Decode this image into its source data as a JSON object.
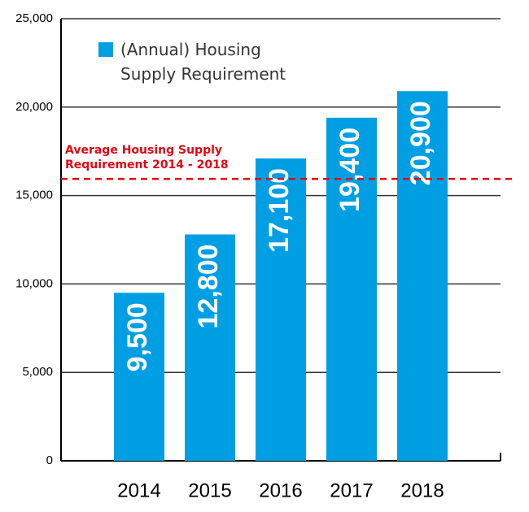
{
  "chart_data": {
    "type": "bar",
    "categories": [
      "2014",
      "2015",
      "2016",
      "2017",
      "2018"
    ],
    "series": [
      {
        "name": "(Annual) Housing Supply Requirement",
        "color": "#009fe3",
        "values": [
          9500,
          12800,
          17100,
          19400,
          20900
        ],
        "value_labels": [
          "9,500",
          "12,800",
          "17,100",
          "19,400",
          "20,900"
        ]
      }
    ],
    "ylim": [
      0,
      25000
    ],
    "yticks": [
      0,
      {
        "value": 5000,
        "label": "5,000"
      },
      {
        "value": 10000,
        "label": "10,000"
      },
      {
        "value": 15000,
        "label": "15,000"
      },
      {
        "value": 20000,
        "label": "20,000"
      },
      {
        "value": 25000,
        "label": "25,000"
      }
    ],
    "grid": true,
    "reference_line": {
      "value": 15940,
      "label": "Average Housing Supply Requirement 2014 - 2018",
      "color": "#e30613"
    },
    "legend": "top-left"
  }
}
